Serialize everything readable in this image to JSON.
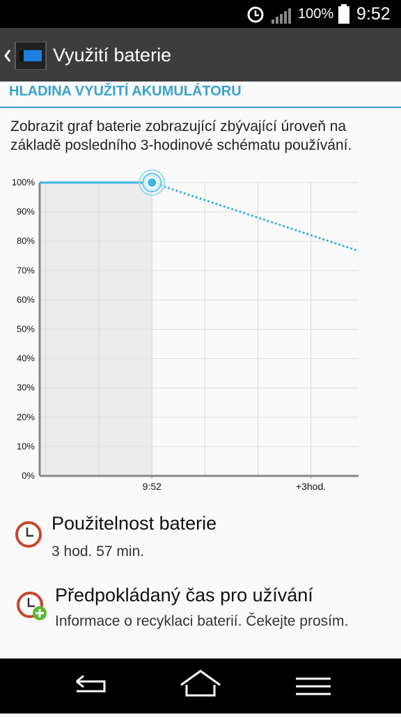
{
  "status_bar": {
    "battery": "100%",
    "time": "9:52"
  },
  "header": {
    "title": "Využití baterie"
  },
  "section": {
    "title": "HLADINA VYUŽITÍ AKUMULÁTORU",
    "description_lines": [
      "Zobrazit graf baterie zobrazující zbývající úroveň na",
      "základě posledního 3-hodinové schématu používání."
    ]
  },
  "chart_data": {
    "type": "line",
    "series": [
      {
        "color": "#3bb4e0",
        "style": "solid",
        "x": [
          -2.12,
          0
        ],
        "values": [
          100,
          100
        ]
      },
      {
        "color": "#3bb4e0",
        "style": "dotted",
        "x": [
          0,
          3.9
        ],
        "values": [
          100,
          76.7
        ]
      }
    ],
    "xlim": [
      -2.12,
      3.9
    ],
    "xticks": [
      {
        "value": 0,
        "label": "9:52"
      },
      {
        "value": 3,
        "label": "+3hod."
      }
    ],
    "x_grid_step": 1,
    "ylim": [
      0,
      100
    ],
    "yticks": [
      {
        "value": 0,
        "label": "0%"
      },
      {
        "value": 10,
        "label": "10%"
      },
      {
        "value": 20,
        "label": "20%"
      },
      {
        "value": 30,
        "label": "30%"
      },
      {
        "value": 40,
        "label": "40%"
      },
      {
        "value": 50,
        "label": "50%"
      },
      {
        "value": 60,
        "label": "60%"
      },
      {
        "value": 70,
        "label": "70%"
      },
      {
        "value": 80,
        "label": "80%"
      },
      {
        "value": 90,
        "label": "90%"
      },
      {
        "value": 100,
        "label": "100%"
      }
    ],
    "grid": true
  },
  "items": [
    {
      "title": "Použitelnost baterie",
      "subtitle": "3 hod. 57 min."
    },
    {
      "title": "Předpokládaný čas pro užívání",
      "subtitle": "Informace o recyklaci baterií. Čekejte prosím."
    }
  ]
}
